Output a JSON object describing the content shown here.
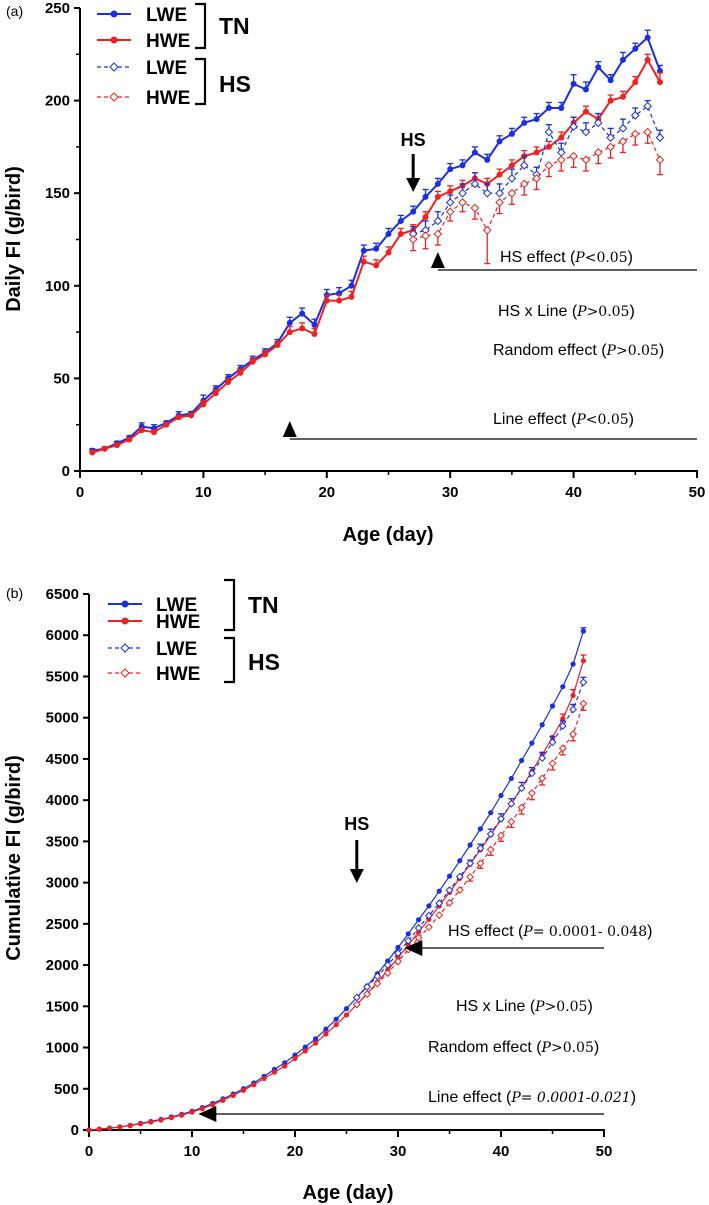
{
  "colors": {
    "blue": "#1a2fe0",
    "red": "#ee2222",
    "black": "#000000"
  },
  "chart_data": [
    {
      "panel": "(a)",
      "type": "line",
      "title": "",
      "xlabel": "Age (day)",
      "ylabel": "Daily FI (g/bird)",
      "xlim": [
        0,
        50
      ],
      "ylim": [
        0,
        250
      ],
      "xticks": [
        "0",
        "10",
        "20",
        "30",
        "40",
        "50"
      ],
      "yticks": [
        "0",
        "50",
        "100",
        "150",
        "200",
        "250"
      ],
      "legend": {
        "entries": [
          "LWE",
          "HWE",
          "LWE",
          "HWE"
        ],
        "groups": [
          "TN",
          "HS"
        ]
      },
      "series": [
        {
          "name": "LWE TN",
          "color": "#1a2fe0",
          "style": "solid",
          "marker": "filled",
          "x": [
            1,
            2,
            3,
            4,
            5,
            6,
            7,
            8,
            9,
            10,
            11,
            12,
            13,
            14,
            15,
            16,
            17,
            18,
            19,
            20,
            21,
            22,
            23,
            24,
            25,
            26,
            27,
            28,
            29,
            30,
            31,
            32,
            33,
            34,
            35,
            36,
            37,
            38,
            39,
            40,
            41,
            42,
            43,
            44,
            45,
            46,
            47
          ],
          "values": [
            11,
            12,
            15,
            18,
            24,
            23,
            26,
            30,
            31,
            38,
            44,
            50,
            55,
            60,
            64,
            69,
            80,
            85,
            79,
            95,
            96,
            100,
            119,
            120,
            128,
            135,
            140,
            148,
            155,
            163,
            165,
            172,
            168,
            178,
            182,
            188,
            190,
            196,
            196,
            209,
            206,
            218,
            211,
            222,
            228,
            234,
            216
          ],
          "err": [
            1,
            1,
            1,
            1,
            2,
            2,
            1,
            2,
            1,
            3,
            2,
            2,
            2,
            2,
            2,
            2,
            3,
            3,
            3,
            3,
            3,
            3,
            3,
            3,
            3,
            3,
            3,
            4,
            3,
            3,
            3,
            3,
            3,
            3,
            3,
            3,
            3,
            3,
            3,
            5,
            4,
            3,
            3,
            4,
            3,
            4,
            3
          ]
        },
        {
          "name": "HWE TN",
          "color": "#ee2222",
          "style": "solid",
          "marker": "filled",
          "x": [
            1,
            2,
            3,
            4,
            5,
            6,
            7,
            8,
            9,
            10,
            11,
            12,
            13,
            14,
            15,
            16,
            17,
            18,
            19,
            20,
            21,
            22,
            23,
            24,
            25,
            26,
            27,
            28,
            29,
            30,
            31,
            32,
            33,
            34,
            35,
            36,
            37,
            38,
            39,
            40,
            41,
            42,
            43,
            44,
            45,
            46,
            47
          ],
          "values": [
            10,
            12,
            14,
            17,
            22,
            21,
            25,
            29,
            30,
            36,
            42,
            48,
            53,
            59,
            63,
            68,
            75,
            77,
            74,
            92,
            92,
            94,
            113,
            111,
            118,
            128,
            130,
            137,
            148,
            151,
            154,
            158,
            155,
            160,
            165,
            170,
            172,
            175,
            180,
            188,
            194,
            190,
            200,
            202,
            210,
            222,
            210
          ],
          "err": [
            1,
            1,
            1,
            1,
            1,
            1,
            1,
            1,
            1,
            2,
            2,
            2,
            2,
            2,
            2,
            2,
            3,
            3,
            3,
            3,
            3,
            3,
            3,
            3,
            3,
            3,
            3,
            3,
            3,
            3,
            3,
            3,
            3,
            3,
            3,
            3,
            3,
            3,
            3,
            3,
            3,
            3,
            3,
            3,
            3,
            3,
            5
          ]
        },
        {
          "name": "LWE HS",
          "color": "#1a2fe0",
          "style": "dashed",
          "marker": "open",
          "x": [
            27,
            28,
            29,
            30,
            31,
            32,
            33,
            34,
            35,
            36,
            37,
            38,
            39,
            40,
            41,
            42,
            43,
            44,
            45,
            46,
            47
          ],
          "values": [
            128,
            130,
            135,
            145,
            150,
            155,
            150,
            150,
            158,
            165,
            160,
            183,
            172,
            186,
            183,
            188,
            180,
            185,
            192,
            197,
            180
          ],
          "err": [
            4,
            5,
            5,
            4,
            5,
            6,
            5,
            5,
            5,
            5,
            4,
            4,
            5,
            5,
            5,
            5,
            5,
            5,
            4,
            3,
            4
          ]
        },
        {
          "name": "HWE HS",
          "color": "#ee2222",
          "style": "dashed",
          "marker": "open",
          "x": [
            27,
            28,
            29,
            30,
            31,
            32,
            33,
            34,
            35,
            36,
            37,
            38,
            39,
            40,
            41,
            42,
            43,
            44,
            45,
            46,
            47
          ],
          "values": [
            125,
            127,
            128,
            140,
            145,
            142,
            130,
            145,
            150,
            155,
            158,
            165,
            168,
            170,
            168,
            172,
            175,
            178,
            182,
            183,
            168
          ],
          "err": [
            6,
            7,
            6,
            5,
            5,
            6,
            18,
            6,
            6,
            6,
            6,
            6,
            6,
            6,
            6,
            6,
            6,
            6,
            6,
            6,
            8
          ]
        }
      ],
      "annotations": {
        "hs_arrow": {
          "label": "HS",
          "x": 27
        },
        "effects": [
          {
            "text": "HS effect (",
            "var": "P",
            "rel": "<",
            "val": "0.05",
            "close": ")",
            "start_x": 29
          },
          {
            "text": "HS x Line  (",
            "var": "P",
            "rel": ">",
            "val": "0.05",
            "close": ")"
          },
          {
            "text": "Random effect (",
            "var": "P",
            "rel": ">",
            "val": "0.05",
            "close": ")"
          },
          {
            "text": "Line effect (",
            "var": "P",
            "rel": "<",
            "val": "0.05",
            "close": ")",
            "start_x": 17
          }
        ]
      }
    },
    {
      "panel": "(b)",
      "type": "line",
      "title": "",
      "xlabel": "Age (day)",
      "ylabel": "Cumulative FI (g/bird)",
      "xlim": [
        0,
        50
      ],
      "ylim": [
        0,
        6500
      ],
      "xticks": [
        "0",
        "10",
        "20",
        "30",
        "40",
        "50"
      ],
      "yticks": [
        "0",
        "500",
        "1000",
        "1500",
        "2000",
        "2500",
        "3000",
        "3500",
        "4000",
        "4500",
        "5000",
        "5500",
        "6000",
        "6500"
      ],
      "legend": {
        "entries": [
          "LWE",
          "HWE",
          "LWE",
          "HWE"
        ],
        "groups": [
          "TN",
          "HS"
        ]
      },
      "series": [
        {
          "name": "LWE TN",
          "color": "#1a2fe0",
          "style": "solid",
          "marker": "filled",
          "x": [
            0,
            1,
            2,
            3,
            4,
            5,
            6,
            7,
            8,
            9,
            10,
            11,
            12,
            13,
            14,
            15,
            16,
            17,
            18,
            19,
            20,
            21,
            22,
            23,
            24,
            25,
            26,
            27,
            28,
            29,
            30,
            31,
            32,
            33,
            34,
            35,
            36,
            37,
            38,
            39,
            40,
            41,
            42,
            43,
            44,
            45,
            46,
            47,
            48
          ],
          "values": [
            0,
            11,
            23,
            38,
            56,
            80,
            103,
            129,
            159,
            190,
            228,
            272,
            322,
            377,
            437,
            501,
            570,
            650,
            735,
            814,
            909,
            1005,
            1105,
            1224,
            1344,
            1472,
            1607,
            1747,
            1895,
            2050,
            2213,
            2378,
            2550,
            2718,
            2896,
            3078,
            3266,
            3456,
            3652,
            3848,
            4057,
            4263,
            4481,
            4692,
            4914,
            5142,
            5376,
            5650,
            6050
          ],
          "err": [
            0,
            0,
            0,
            0,
            0,
            0,
            0,
            0,
            0,
            0,
            0,
            0,
            0,
            0,
            0,
            0,
            0,
            0,
            0,
            0,
            0,
            0,
            0,
            0,
            0,
            0,
            0,
            0,
            0,
            0,
            0,
            0,
            0,
            0,
            0,
            0,
            0,
            0,
            0,
            0,
            0,
            0,
            0,
            0,
            0,
            0,
            0,
            0,
            40
          ]
        },
        {
          "name": "HWE TN",
          "color": "#ee2222",
          "style": "solid",
          "marker": "filled",
          "x": [
            0,
            1,
            2,
            3,
            4,
            5,
            6,
            7,
            8,
            9,
            10,
            11,
            12,
            13,
            14,
            15,
            16,
            17,
            18,
            19,
            20,
            21,
            22,
            23,
            24,
            25,
            26,
            27,
            28,
            29,
            30,
            31,
            32,
            33,
            34,
            35,
            36,
            37,
            38,
            39,
            40,
            41,
            42,
            43,
            44,
            45,
            46,
            47,
            48
          ],
          "values": [
            0,
            10,
            22,
            36,
            53,
            75,
            96,
            121,
            150,
            180,
            216,
            258,
            306,
            359,
            418,
            481,
            549,
            624,
            701,
            775,
            867,
            959,
            1053,
            1166,
            1277,
            1395,
            1523,
            1653,
            1790,
            1938,
            2089,
            2243,
            2401,
            2556,
            2716,
            2881,
            3051,
            3223,
            3398,
            3578,
            3766,
            3960,
            4150,
            4350,
            4552,
            4762,
            4984,
            5270,
            5690
          ],
          "err": [
            0,
            0,
            0,
            0,
            0,
            0,
            0,
            0,
            0,
            0,
            0,
            0,
            0,
            0,
            0,
            0,
            0,
            0,
            0,
            0,
            0,
            0,
            0,
            0,
            0,
            0,
            0,
            0,
            0,
            0,
            0,
            0,
            0,
            0,
            0,
            0,
            0,
            0,
            0,
            0,
            0,
            0,
            0,
            0,
            0,
            0,
            60,
            70,
            70
          ]
        },
        {
          "name": "LWE HS",
          "color": "#1a2fe0",
          "style": "dashed",
          "marker": "open",
          "x": [
            26,
            27,
            28,
            29,
            30,
            31,
            32,
            33,
            34,
            35,
            36,
            37,
            38,
            39,
            40,
            41,
            42,
            43,
            44,
            45,
            46,
            47,
            48
          ],
          "values": [
            1607,
            1735,
            1865,
            2000,
            2145,
            2295,
            2450,
            2600,
            2750,
            2908,
            3073,
            3233,
            3416,
            3588,
            3774,
            3957,
            4145,
            4325,
            4510,
            4702,
            4900,
            5100,
            5430
          ],
          "err": [
            0,
            0,
            0,
            0,
            0,
            0,
            0,
            0,
            0,
            0,
            0,
            40,
            50,
            60,
            60,
            60,
            70,
            70,
            70,
            70,
            60,
            60,
            60
          ]
        },
        {
          "name": "HWE HS",
          "color": "#ee2222",
          "style": "dashed",
          "marker": "open",
          "x": [
            26,
            27,
            28,
            29,
            30,
            31,
            32,
            33,
            34,
            35,
            36,
            37,
            38,
            39,
            40,
            41,
            42,
            43,
            44,
            45,
            46,
            47,
            48
          ],
          "values": [
            1523,
            1648,
            1775,
            1903,
            2043,
            2188,
            2330,
            2460,
            2605,
            2755,
            2910,
            3068,
            3233,
            3401,
            3571,
            3739,
            3911,
            4086,
            4264,
            4446,
            4629,
            4800,
            5170
          ],
          "err": [
            0,
            0,
            0,
            0,
            0,
            0,
            0,
            0,
            0,
            0,
            0,
            50,
            60,
            70,
            70,
            70,
            80,
            80,
            80,
            80,
            80,
            80,
            80
          ]
        }
      ],
      "annotations": {
        "hs_arrow": {
          "label": "HS",
          "x": 26
        },
        "effects": [
          {
            "text": "HS effect (",
            "var": "P",
            "rel": "= ",
            "val": "0.0001- 0.048",
            "close": ")",
            "start_x": 31
          },
          {
            "text": "HS x Line  (",
            "var": "P",
            "rel": ">",
            "val": "0.05",
            "close": ")"
          },
          {
            "text": "Random effect (",
            "var": "P",
            "rel": ">",
            "val": "0.05",
            "close": ")"
          },
          {
            "text": "Line effect (",
            "var": "P",
            "rel": "= ",
            "val": "0.0001-0.021",
            "close": ")",
            "start_x": 11
          }
        ]
      }
    }
  ]
}
